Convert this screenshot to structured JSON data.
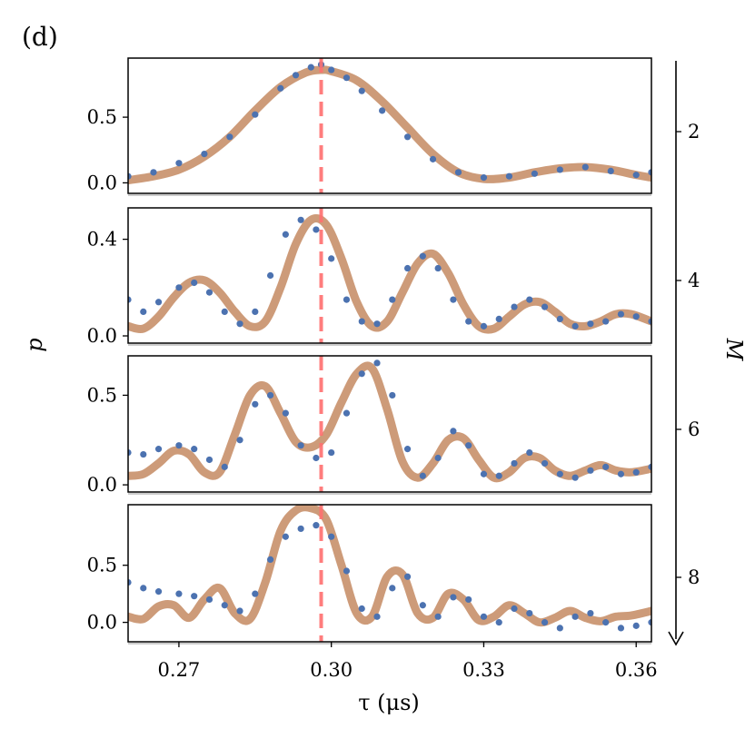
{
  "figure": {
    "panel_label": "(d)",
    "y_title": "p",
    "x_title": "τ (μs)",
    "m_title": "M",
    "x_ticks": [
      "0.27",
      "0.30",
      "0.33",
      "0.36"
    ],
    "m_ticks": [
      "2",
      "4",
      "6",
      "8"
    ]
  },
  "colors": {
    "data_points": "#4c72b0",
    "fit_curve": "#c8906a",
    "marker_line": "#ff7070"
  },
  "chart_data": [
    {
      "type": "scatter",
      "panel": 1,
      "xlim": [
        0.26,
        0.363
      ],
      "ylim": [
        -0.08,
        0.95
      ],
      "y_ticks": [
        0.0,
        0.5
      ],
      "y_tick_labels": [
        "0.0",
        "0.5"
      ],
      "vline_x": 0.298,
      "series": [
        {
          "kind": "data",
          "x": [
            0.26,
            0.265,
            0.27,
            0.275,
            0.28,
            0.285,
            0.29,
            0.293,
            0.296,
            0.298,
            0.3,
            0.303,
            0.306,
            0.31,
            0.315,
            0.32,
            0.325,
            0.33,
            0.335,
            0.34,
            0.345,
            0.35,
            0.355,
            0.36,
            0.363
          ],
          "y": [
            0.05,
            0.08,
            0.15,
            0.22,
            0.35,
            0.52,
            0.72,
            0.82,
            0.88,
            0.9,
            0.86,
            0.8,
            0.7,
            0.55,
            0.35,
            0.18,
            0.08,
            0.04,
            0.05,
            0.07,
            0.1,
            0.12,
            0.09,
            0.06,
            0.08
          ]
        },
        {
          "kind": "fit",
          "x": [
            0.26,
            0.265,
            0.27,
            0.275,
            0.28,
            0.285,
            0.29,
            0.295,
            0.298,
            0.3,
            0.305,
            0.31,
            0.315,
            0.32,
            0.325,
            0.33,
            0.335,
            0.34,
            0.345,
            0.35,
            0.355,
            0.36,
            0.363
          ],
          "y": [
            0.02,
            0.05,
            0.1,
            0.2,
            0.35,
            0.55,
            0.73,
            0.84,
            0.86,
            0.85,
            0.78,
            0.62,
            0.42,
            0.22,
            0.08,
            0.03,
            0.04,
            0.08,
            0.11,
            0.12,
            0.1,
            0.06,
            0.04
          ]
        }
      ]
    },
    {
      "type": "scatter",
      "panel": 2,
      "xlim": [
        0.26,
        0.363
      ],
      "ylim": [
        -0.03,
        0.53
      ],
      "y_ticks": [
        0.0,
        0.4
      ],
      "y_tick_labels": [
        "0.0",
        "0.4"
      ],
      "vline_x": 0.298,
      "series": [
        {
          "kind": "data",
          "x": [
            0.26,
            0.263,
            0.266,
            0.27,
            0.273,
            0.276,
            0.279,
            0.282,
            0.285,
            0.288,
            0.291,
            0.294,
            0.297,
            0.3,
            0.303,
            0.306,
            0.309,
            0.312,
            0.315,
            0.318,
            0.321,
            0.324,
            0.327,
            0.33,
            0.333,
            0.336,
            0.339,
            0.342,
            0.345,
            0.348,
            0.351,
            0.354,
            0.357,
            0.36,
            0.363
          ],
          "y": [
            0.15,
            0.1,
            0.14,
            0.2,
            0.22,
            0.18,
            0.1,
            0.05,
            0.1,
            0.25,
            0.42,
            0.48,
            0.44,
            0.32,
            0.15,
            0.06,
            0.05,
            0.15,
            0.28,
            0.33,
            0.28,
            0.15,
            0.06,
            0.04,
            0.07,
            0.12,
            0.15,
            0.12,
            0.07,
            0.04,
            0.05,
            0.06,
            0.09,
            0.08,
            0.06
          ]
        },
        {
          "kind": "fit",
          "x": [
            0.26,
            0.263,
            0.266,
            0.269,
            0.272,
            0.275,
            0.278,
            0.281,
            0.284,
            0.287,
            0.29,
            0.293,
            0.296,
            0.299,
            0.302,
            0.305,
            0.308,
            0.311,
            0.314,
            0.317,
            0.32,
            0.323,
            0.326,
            0.329,
            0.332,
            0.335,
            0.338,
            0.341,
            0.344,
            0.347,
            0.35,
            0.353,
            0.356,
            0.359,
            0.363
          ],
          "y": [
            0.04,
            0.03,
            0.08,
            0.16,
            0.22,
            0.23,
            0.18,
            0.1,
            0.04,
            0.06,
            0.2,
            0.38,
            0.48,
            0.46,
            0.32,
            0.14,
            0.04,
            0.06,
            0.18,
            0.3,
            0.34,
            0.26,
            0.13,
            0.04,
            0.03,
            0.08,
            0.13,
            0.14,
            0.1,
            0.05,
            0.04,
            0.06,
            0.09,
            0.09,
            0.06
          ]
        }
      ]
    },
    {
      "type": "scatter",
      "panel": 3,
      "xlim": [
        0.26,
        0.363
      ],
      "ylim": [
        -0.04,
        0.72
      ],
      "y_ticks": [
        0.0,
        0.5
      ],
      "y_tick_labels": [
        "0.0",
        "0.5"
      ],
      "vline_x": 0.298,
      "series": [
        {
          "kind": "data",
          "x": [
            0.26,
            0.263,
            0.266,
            0.27,
            0.273,
            0.276,
            0.279,
            0.282,
            0.285,
            0.288,
            0.291,
            0.294,
            0.297,
            0.3,
            0.303,
            0.306,
            0.309,
            0.312,
            0.315,
            0.318,
            0.321,
            0.324,
            0.327,
            0.33,
            0.333,
            0.336,
            0.339,
            0.342,
            0.345,
            0.348,
            0.351,
            0.354,
            0.357,
            0.36,
            0.363
          ],
          "y": [
            0.18,
            0.17,
            0.2,
            0.22,
            0.2,
            0.14,
            0.1,
            0.25,
            0.45,
            0.5,
            0.4,
            0.22,
            0.15,
            0.18,
            0.4,
            0.62,
            0.68,
            0.5,
            0.2,
            0.05,
            0.15,
            0.3,
            0.22,
            0.06,
            0.05,
            0.12,
            0.18,
            0.12,
            0.06,
            0.04,
            0.08,
            0.1,
            0.06,
            0.07,
            0.1
          ]
        },
        {
          "kind": "fit",
          "x": [
            0.26,
            0.263,
            0.266,
            0.269,
            0.272,
            0.275,
            0.278,
            0.281,
            0.284,
            0.287,
            0.29,
            0.293,
            0.296,
            0.299,
            0.302,
            0.305,
            0.308,
            0.311,
            0.314,
            0.317,
            0.32,
            0.323,
            0.326,
            0.329,
            0.332,
            0.335,
            0.338,
            0.341,
            0.344,
            0.347,
            0.35,
            0.353,
            0.356,
            0.359,
            0.363
          ],
          "y": [
            0.05,
            0.06,
            0.12,
            0.19,
            0.17,
            0.07,
            0.07,
            0.28,
            0.5,
            0.55,
            0.4,
            0.24,
            0.21,
            0.28,
            0.46,
            0.62,
            0.65,
            0.42,
            0.13,
            0.04,
            0.12,
            0.25,
            0.26,
            0.14,
            0.04,
            0.07,
            0.15,
            0.15,
            0.08,
            0.05,
            0.08,
            0.11,
            0.08,
            0.07,
            0.09
          ]
        }
      ]
    },
    {
      "type": "scatter",
      "panel": 4,
      "xlim": [
        0.26,
        0.363
      ],
      "ylim": [
        -0.17,
        1.03
      ],
      "y_ticks": [
        0.0,
        0.5
      ],
      "y_tick_labels": [
        "0.0",
        "0.5"
      ],
      "vline_x": 0.298,
      "series": [
        {
          "kind": "data",
          "x": [
            0.26,
            0.263,
            0.266,
            0.27,
            0.273,
            0.276,
            0.279,
            0.282,
            0.285,
            0.288,
            0.291,
            0.294,
            0.297,
            0.3,
            0.303,
            0.306,
            0.309,
            0.312,
            0.315,
            0.318,
            0.321,
            0.324,
            0.327,
            0.33,
            0.333,
            0.336,
            0.339,
            0.342,
            0.345,
            0.348,
            0.351,
            0.354,
            0.357,
            0.36,
            0.363
          ],
          "y": [
            0.35,
            0.3,
            0.27,
            0.25,
            0.23,
            0.2,
            0.15,
            0.1,
            0.25,
            0.55,
            0.75,
            0.82,
            0.85,
            0.75,
            0.45,
            0.12,
            0.05,
            0.3,
            0.4,
            0.15,
            0.05,
            0.22,
            0.2,
            0.05,
            0.0,
            0.12,
            0.08,
            0.0,
            -0.05,
            0.05,
            0.08,
            0.0,
            -0.05,
            -0.03,
            0.0
          ]
        },
        {
          "kind": "fit",
          "x": [
            0.26,
            0.263,
            0.266,
            0.269,
            0.272,
            0.275,
            0.278,
            0.281,
            0.284,
            0.287,
            0.29,
            0.293,
            0.296,
            0.299,
            0.302,
            0.305,
            0.308,
            0.311,
            0.314,
            0.317,
            0.32,
            0.323,
            0.326,
            0.329,
            0.332,
            0.335,
            0.338,
            0.341,
            0.344,
            0.347,
            0.35,
            0.353,
            0.356,
            0.359,
            0.363
          ],
          "y": [
            0.05,
            0.03,
            0.14,
            0.15,
            0.04,
            0.2,
            0.3,
            0.08,
            0.03,
            0.35,
            0.8,
            0.98,
            1.0,
            0.9,
            0.5,
            0.08,
            0.05,
            0.4,
            0.42,
            0.08,
            0.04,
            0.25,
            0.2,
            0.02,
            0.05,
            0.15,
            0.08,
            0.0,
            0.04,
            0.1,
            0.04,
            0.01,
            0.05,
            0.06,
            0.1
          ]
        }
      ]
    }
  ]
}
